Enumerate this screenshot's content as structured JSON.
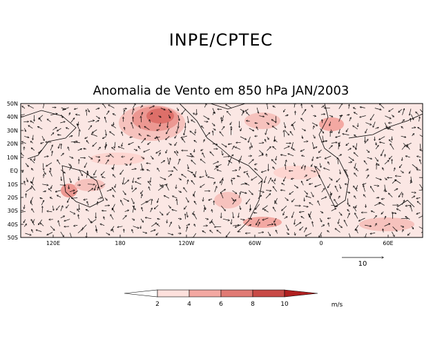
{
  "header": {
    "agency": "INPE/CPTEC"
  },
  "map": {
    "title": "Anomalia de Vento em 850 hPa JAN/2003",
    "lat_labels": [
      "50N",
      "40N",
      "30N",
      "20N",
      "10N",
      "EQ",
      "10S",
      "20S",
      "30S",
      "40S",
      "50S"
    ],
    "lon_labels": [
      "120E",
      "180",
      "120W",
      "60W",
      "0",
      "60E"
    ],
    "reference_vector": {
      "label": "10",
      "value": 10
    }
  },
  "legend": {
    "ticks": [
      "2",
      "4",
      "6",
      "8",
      "10"
    ],
    "unit": "m/s",
    "colors": [
      "#ffffff",
      "#fde0dc",
      "#f3a8a2",
      "#e07a74",
      "#c84a46",
      "#b02020"
    ]
  }
}
